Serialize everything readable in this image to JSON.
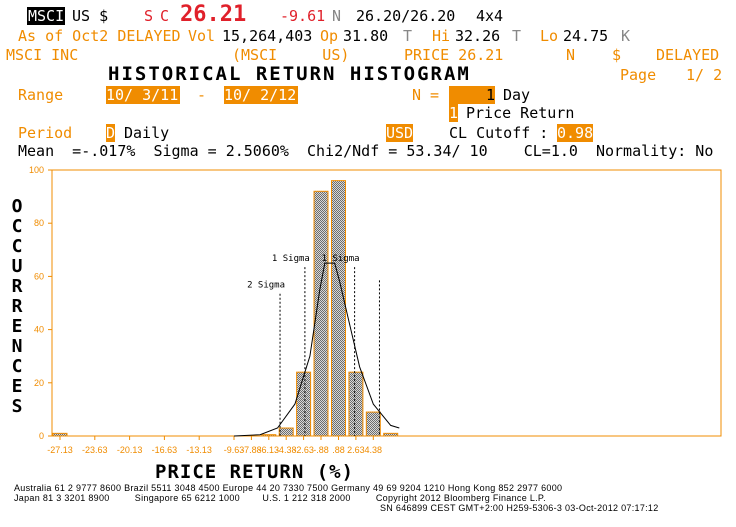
{
  "ticker_bar": {
    "security": "MSCI",
    "currency": "US $",
    "side": "S",
    "cond": "C",
    "last_price": "26.21",
    "change": "-9.61",
    "cond2": "N",
    "bid_ask": "26.20/26.20",
    "size": "4x4"
  },
  "quote_bar": {
    "as_of": "As of Oct2 DELAYED",
    "vol_label": "Vol",
    "vol": "15,264,403",
    "op_label": "Op",
    "op": "31.80",
    "op_cond": "T",
    "hi_label": "Hi",
    "hi": "32.26",
    "hi_cond": "T",
    "lo_label": "Lo",
    "lo": "24.75",
    "lo_cond": "K"
  },
  "security_bar": {
    "name": "MSCI INC",
    "ticker": "(MSCI     US)",
    "price": "PRICE 26.21",
    "n": "N",
    "dollar": "$",
    "status": "DELAYED"
  },
  "header": {
    "title": "HISTORICAL RETURN HISTOGRAM",
    "page_label": "Page",
    "page": "1/ 2"
  },
  "controls": {
    "range_label": "Range",
    "range_start": "10/ 3/11",
    "range_dash": "-",
    "range_end": "10/ 2/12",
    "n_label": "N =",
    "n_value": "1",
    "n_unit": "Day",
    "return_type_code": "1",
    "return_type": "Price Return",
    "period_label": "Period",
    "period_code": "D",
    "period": "Daily",
    "currency": "USD",
    "cl_cutoff_label": "CL Cutoff :",
    "cl_cutoff": "0.98"
  },
  "stats": {
    "line": "Mean  =-.017%  Sigma = 2.5060%  Chi2/Ndf = 53.34/ 10    CL=1.0  Normality: No"
  },
  "chart_data": {
    "type": "bar",
    "ylabel": "OCCURRENCES",
    "xlabel": "PRICE RETURN (%)",
    "ylim": [
      0,
      100
    ],
    "y_ticks": [
      "0",
      "20",
      "40",
      "60",
      "80",
      "100"
    ],
    "x_ticks": [
      "-27.13",
      "-23.63",
      "-20.13",
      "-16.63",
      "-13.13",
      "-9.63",
      "-7.88",
      "-6.13",
      "-4.38",
      "-2.63",
      "-.88",
      ".88",
      "2.63",
      "4.38"
    ],
    "bars": [
      {
        "x": -27.13,
        "value": 1
      },
      {
        "x": -6.13,
        "value": 0.5
      },
      {
        "x": -4.38,
        "value": 3
      },
      {
        "x": -2.63,
        "value": 24
      },
      {
        "x": -0.88,
        "value": 92
      },
      {
        "x": 0.88,
        "value": 96
      },
      {
        "x": 2.63,
        "value": 24
      },
      {
        "x": 4.38,
        "value": 9
      },
      {
        "x": 6.13,
        "value": 1
      }
    ],
    "normal_curve": [
      {
        "x": -9.63,
        "y": 0
      },
      {
        "x": -7.0,
        "y": 0.5
      },
      {
        "x": -5.25,
        "y": 3
      },
      {
        "x": -3.5,
        "y": 12
      },
      {
        "x": -2.0,
        "y": 30
      },
      {
        "x": -1.0,
        "y": 55
      },
      {
        "x": -0.5,
        "y": 65
      },
      {
        "x": 0.5,
        "y": 65
      },
      {
        "x": 1.0,
        "y": 58
      },
      {
        "x": 2.0,
        "y": 42
      },
      {
        "x": 3.0,
        "y": 26
      },
      {
        "x": 4.38,
        "y": 12
      },
      {
        "x": 6.13,
        "y": 4
      },
      {
        "x": 7.0,
        "y": 3
      }
    ],
    "markers": [
      {
        "label": "2 Sigma",
        "x": -5.0,
        "top": 55
      },
      {
        "label": "1 Sigma",
        "x": -2.5,
        "top": 65
      },
      {
        "label": "1 Sigma",
        "x": 2.5,
        "top": 65
      },
      {
        "label": "",
        "x": 5.0,
        "top": 60
      }
    ],
    "colors": {
      "bar_fill": "#6d6d6d",
      "bar_edge": "#f08c00",
      "axis": "#f08c00",
      "line": "#000000"
    }
  },
  "footer": {
    "line1": "Australia 61 2 9777 8600 Brazil 5511 3048 4500 Europe 44 20 7330 7500 Germany 49 69 9204 1210 Hong Kong 852 2977 6000",
    "line2": "Japan 81 3 3201 8900         Singapore 65 6212 1000        U.S. 1 212 318 2000         Copyright 2012 Bloomberg Finance L.P.",
    "line3": "SN 646899 CEST GMT+2:00 H259-5306-3 03-Oct-2012 07:17:12"
  }
}
